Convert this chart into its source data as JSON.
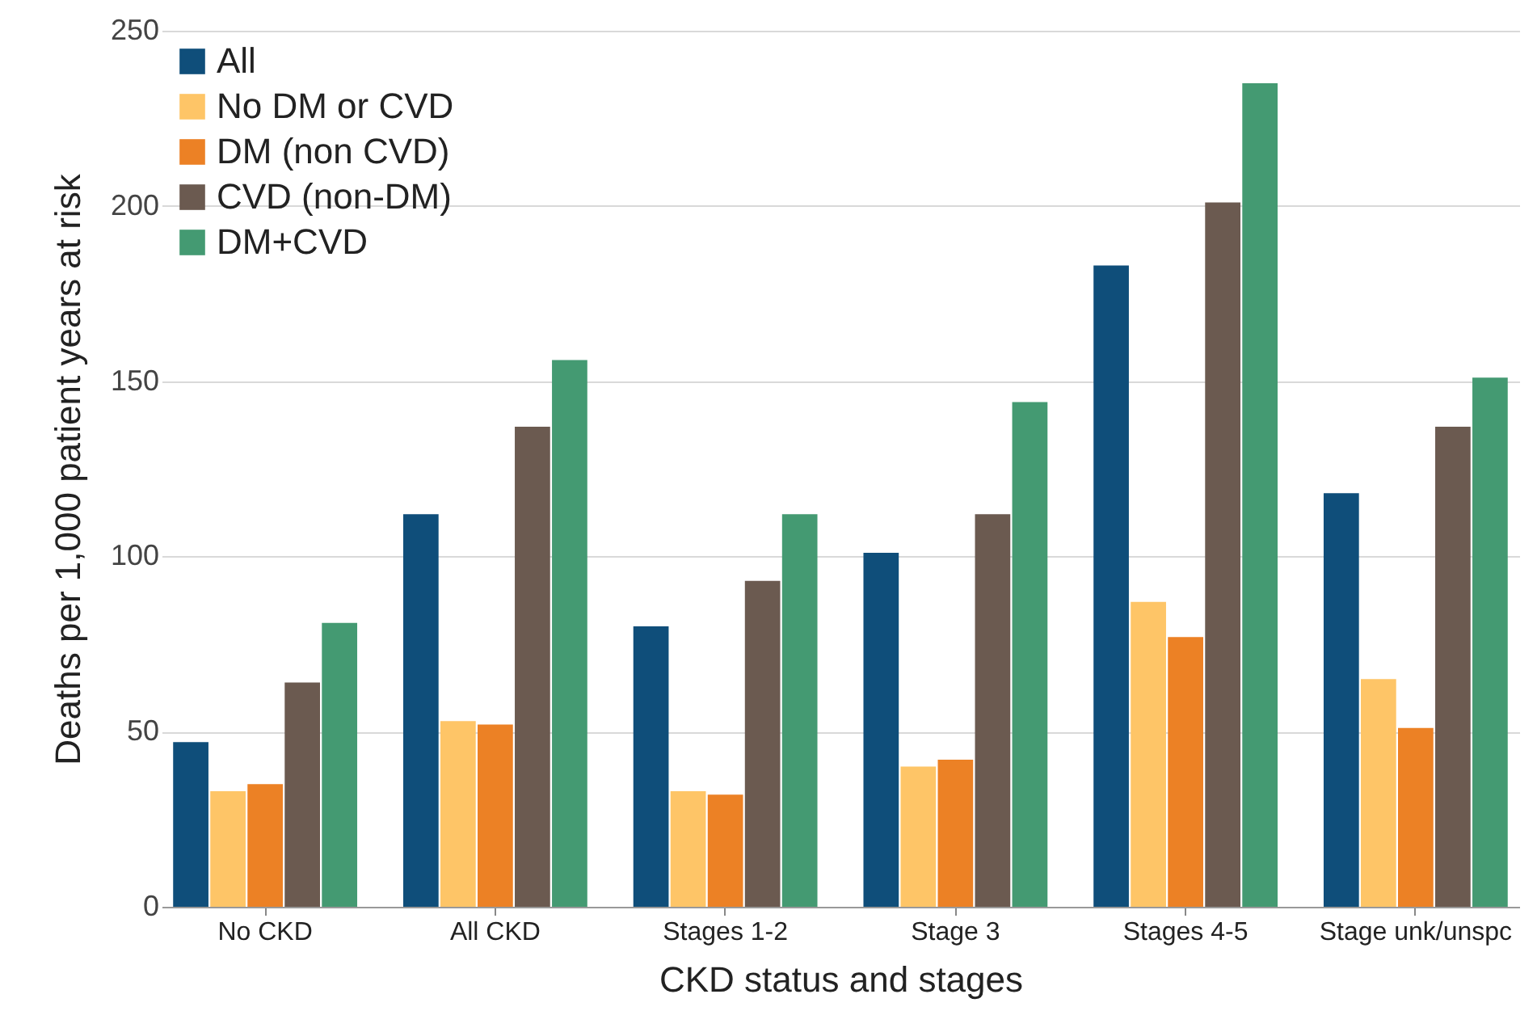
{
  "chart_data": {
    "type": "bar",
    "xlabel": "CKD status and stages",
    "ylabel": "Deaths per 1,000 patient years at risk",
    "categories": [
      "No CKD",
      "All CKD",
      "Stages 1-2",
      "Stage 3",
      "Stages 4-5",
      "Stage unk/unspc"
    ],
    "series": [
      {
        "name": "All",
        "color": "#0f4e7a",
        "values": [
          47,
          112,
          80,
          101,
          183,
          118
        ]
      },
      {
        "name": "No DM or CVD",
        "color": "#fec567",
        "values": [
          33,
          53,
          33,
          40,
          87,
          65
        ]
      },
      {
        "name": "DM (non CVD)",
        "color": "#ec8125",
        "values": [
          35,
          52,
          32,
          42,
          77,
          51
        ]
      },
      {
        "name": "CVD (non-DM)",
        "color": "#6b5a50",
        "values": [
          64,
          137,
          93,
          112,
          201,
          137
        ]
      },
      {
        "name": "DM+CVD",
        "color": "#449a72",
        "values": [
          81,
          156,
          112,
          144,
          235,
          151
        ]
      }
    ],
    "ylim": [
      0,
      250
    ],
    "yticks": [
      0,
      50,
      100,
      150,
      200,
      250
    ],
    "grid": "y",
    "legend": "top left"
  }
}
